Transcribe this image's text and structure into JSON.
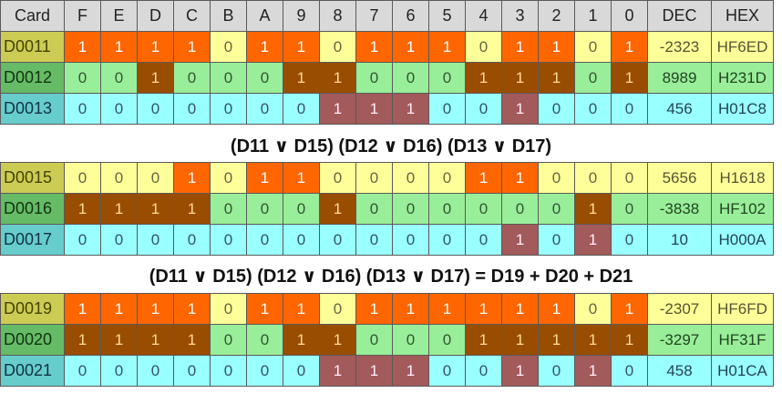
{
  "header": [
    "Card",
    "F",
    "E",
    "D",
    "C",
    "B",
    "A",
    "9",
    "8",
    "7",
    "6",
    "5",
    "4",
    "3",
    "2",
    "1",
    "0",
    "DEC",
    "HEX"
  ],
  "sections": [
    {
      "rows": [
        {
          "card": "D0011",
          "bits": [
            1,
            1,
            1,
            1,
            0,
            1,
            1,
            0,
            1,
            1,
            1,
            0,
            1,
            1,
            0,
            1
          ],
          "dec": "-2323",
          "hex": "HF6ED",
          "style": "Y"
        },
        {
          "card": "D0012",
          "bits": [
            0,
            0,
            1,
            0,
            0,
            0,
            1,
            1,
            0,
            0,
            0,
            1,
            1,
            1,
            0,
            1
          ],
          "dec": "8989",
          "hex": "H231D",
          "style": "G"
        },
        {
          "card": "D0013",
          "bits": [
            0,
            0,
            0,
            0,
            0,
            0,
            0,
            1,
            1,
            1,
            0,
            0,
            1,
            0,
            0,
            0
          ],
          "dec": "456",
          "hex": "H01C8",
          "style": "C"
        }
      ],
      "caption": "(D11 ∨ D15) (D12 ∨ D16) (D13 ∨ D17)"
    },
    {
      "rows": [
        {
          "card": "D0015",
          "bits": [
            0,
            0,
            0,
            1,
            0,
            1,
            1,
            0,
            0,
            0,
            0,
            1,
            1,
            0,
            0,
            0
          ],
          "dec": "5656",
          "hex": "H1618",
          "style": "Y"
        },
        {
          "card": "D0016",
          "bits": [
            1,
            1,
            1,
            1,
            0,
            0,
            0,
            1,
            0,
            0,
            0,
            0,
            0,
            0,
            1,
            0
          ],
          "dec": "-3838",
          "hex": "HF102",
          "style": "G"
        },
        {
          "card": "D0017",
          "bits": [
            0,
            0,
            0,
            0,
            0,
            0,
            0,
            0,
            0,
            0,
            0,
            0,
            1,
            0,
            1,
            0
          ],
          "dec": "10",
          "hex": "H000A",
          "style": "C"
        }
      ],
      "caption": "(D11 ∨ D15) (D12 ∨ D16) (D13 ∨ D17) = D19 + D20 + D21"
    },
    {
      "rows": [
        {
          "card": "D0019",
          "bits": [
            1,
            1,
            1,
            1,
            0,
            1,
            1,
            0,
            1,
            1,
            1,
            1,
            1,
            1,
            0,
            1
          ],
          "dec": "-2307",
          "hex": "HF6FD",
          "style": "Y"
        },
        {
          "card": "D0020",
          "bits": [
            1,
            1,
            1,
            1,
            0,
            0,
            1,
            1,
            0,
            0,
            0,
            1,
            1,
            1,
            1,
            1
          ],
          "dec": "-3297",
          "hex": "HF31F",
          "style": "G"
        },
        {
          "card": "D0021",
          "bits": [
            0,
            0,
            0,
            0,
            0,
            0,
            0,
            1,
            1,
            1,
            0,
            0,
            1,
            0,
            1,
            0
          ],
          "dec": "458",
          "hex": "H01CA",
          "style": "C"
        }
      ],
      "caption": ""
    }
  ]
}
